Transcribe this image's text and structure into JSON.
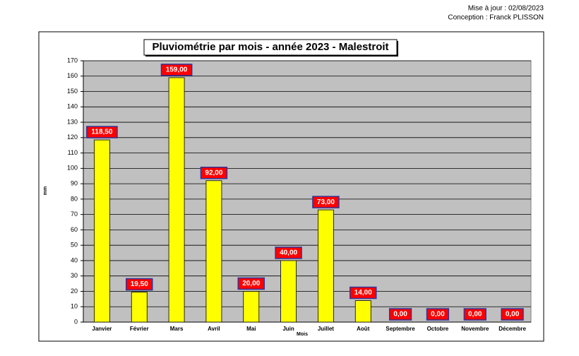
{
  "chart_data": {
    "type": "bar",
    "title": "Pluviométrie par mois - année 2023 - Malestroit",
    "annotations": [
      "Mise à jour : 02/08/2023",
      "Conception : Franck PLISSON"
    ],
    "xlabel": "Mois",
    "ylabel": "mm",
    "categories": [
      "Janvier",
      "Février",
      "Mars",
      "Avril",
      "Mai",
      "Juin",
      "Juillet",
      "Août",
      "Septembre",
      "Octobre",
      "Novembre",
      "Décembre"
    ],
    "values": [
      118.5,
      19.5,
      159,
      92,
      20,
      40,
      73,
      14,
      0,
      0,
      0,
      0
    ],
    "value_labels": [
      "118,50",
      "19,50",
      "159,00",
      "92,00",
      "20,00",
      "40,00",
      "73,00",
      "14,00",
      "0,00",
      "0,00",
      "0,00",
      "0,00"
    ],
    "color": "#ffff00",
    "ylim": [
      0,
      170
    ],
    "yticks": [
      0,
      10,
      20,
      30,
      40,
      50,
      60,
      70,
      80,
      90,
      100,
      110,
      120,
      130,
      140,
      150,
      160,
      170
    ],
    "grid": true
  }
}
